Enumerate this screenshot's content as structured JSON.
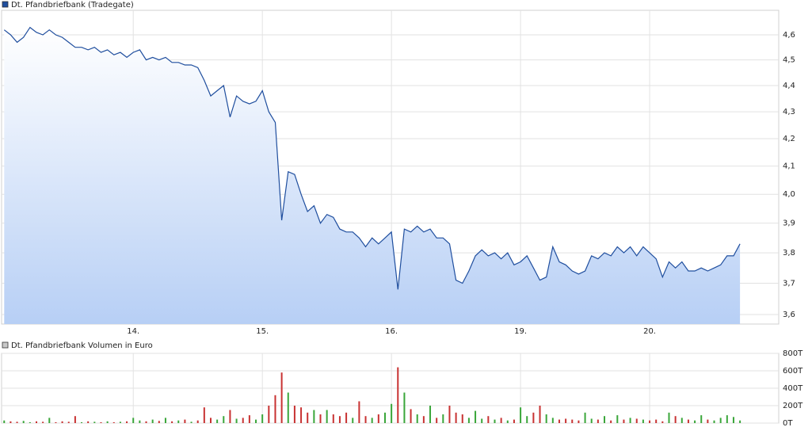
{
  "chart_data": [
    {
      "type": "area",
      "x": [
        0,
        0.05,
        0.1,
        0.15,
        0.2,
        0.25,
        0.3,
        0.35,
        0.4,
        0.45,
        0.5,
        0.55,
        0.6,
        0.65,
        0.7,
        0.75,
        0.8,
        0.85,
        0.9,
        0.95,
        1,
        1.05,
        1.1,
        1.15,
        1.2,
        1.25,
        1.3,
        1.35,
        1.4,
        1.45,
        1.5,
        1.55,
        1.6,
        1.65,
        1.7,
        1.75,
        1.8,
        1.85,
        1.9,
        1.95,
        2,
        2.05,
        2.1,
        2.15,
        2.2,
        2.25,
        2.3,
        2.35,
        2.4,
        2.45,
        2.5,
        2.55,
        2.6,
        2.65,
        2.7,
        2.75,
        2.8,
        2.85,
        2.9,
        2.95,
        3,
        3.05,
        3.1,
        3.15,
        3.2,
        3.25,
        3.3,
        3.35,
        3.4,
        3.45,
        3.5,
        3.55,
        3.6,
        3.65,
        3.7,
        3.75,
        3.8,
        3.85,
        3.9,
        3.95,
        4,
        4.05,
        4.1,
        4.15,
        4.2,
        4.25,
        4.3,
        4.35,
        4.4,
        4.45,
        4.5,
        4.55,
        4.6,
        4.65,
        4.7,
        4.75,
        4.8,
        4.85,
        4.9,
        4.95,
        5,
        5.05,
        5.1,
        5.15,
        5.2,
        5.25,
        5.3,
        5.35,
        5.4,
        5.45,
        5.5,
        5.55,
        5.6,
        5.65,
        5.7
      ],
      "series": [
        {
          "name": "Dt. Pfandbriefbank (Tradegate)",
          "color": "#1f4e9e",
          "values": [
            4.62,
            4.6,
            4.57,
            4.59,
            4.63,
            4.61,
            4.6,
            4.62,
            4.6,
            4.59,
            4.57,
            4.55,
            4.55,
            4.54,
            4.55,
            4.53,
            4.54,
            4.52,
            4.53,
            4.51,
            4.53,
            4.54,
            4.5,
            4.51,
            4.5,
            4.51,
            4.49,
            4.49,
            4.48,
            4.48,
            4.47,
            4.42,
            4.36,
            4.38,
            4.4,
            4.28,
            4.36,
            4.34,
            4.33,
            4.34,
            4.38,
            4.3,
            4.26,
            3.91,
            4.08,
            4.07,
            4.0,
            3.94,
            3.96,
            3.9,
            3.93,
            3.92,
            3.88,
            3.87,
            3.87,
            3.85,
            3.82,
            3.85,
            3.83,
            3.85,
            3.87,
            3.68,
            3.88,
            3.87,
            3.89,
            3.87,
            3.88,
            3.85,
            3.85,
            3.83,
            3.71,
            3.7,
            3.74,
            3.79,
            3.81,
            3.79,
            3.8,
            3.78,
            3.8,
            3.76,
            3.77,
            3.79,
            3.75,
            3.71,
            3.72,
            3.82,
            3.77,
            3.76,
            3.74,
            3.73,
            3.74,
            3.79,
            3.78,
            3.8,
            3.79,
            3.82,
            3.8,
            3.82,
            3.79,
            3.82,
            3.8,
            3.78,
            3.72,
            3.77,
            3.75,
            3.77,
            3.74,
            3.74,
            3.75,
            3.74,
            3.75,
            3.76,
            3.79,
            3.79,
            3.83
          ]
        }
      ],
      "xlim": [
        -0.02,
        6
      ],
      "xticks": [
        {
          "value": 1,
          "label": "14."
        },
        {
          "value": 2,
          "label": "15."
        },
        {
          "value": 3,
          "label": "16."
        },
        {
          "value": 4,
          "label": "19."
        },
        {
          "value": 5,
          "label": "20."
        }
      ],
      "ylim": [
        3.57,
        4.7
      ],
      "yticks": [
        {
          "value": 3.6,
          "label": "3,6"
        },
        {
          "value": 3.7,
          "label": "3,7"
        },
        {
          "value": 3.8,
          "label": "3,8"
        },
        {
          "value": 3.9,
          "label": "3,9"
        },
        {
          "value": 4.0,
          "label": "4,0"
        },
        {
          "value": 4.1,
          "label": "4,1"
        },
        {
          "value": 4.2,
          "label": "4,2"
        },
        {
          "value": 4.3,
          "label": "4,3"
        },
        {
          "value": 4.4,
          "label": "4,4"
        },
        {
          "value": 4.5,
          "label": "4,5"
        },
        {
          "value": 4.6,
          "label": "4,6"
        }
      ],
      "log_scale": true,
      "grid": true,
      "fill_color": "#b7cff5"
    },
    {
      "type": "bar",
      "series": [
        {
          "name": "Dt. Pfandbriefbank Volumen in Euro",
          "color": "#c8c8c8",
          "values": [
            30000,
            20000,
            15000,
            25000,
            10000,
            20000,
            15000,
            60000,
            10000,
            20000,
            15000,
            80000,
            10000,
            20000,
            15000,
            10000,
            20000,
            10000,
            15000,
            20000,
            60000,
            30000,
            20000,
            40000,
            25000,
            60000,
            20000,
            30000,
            40000,
            15000,
            30000,
            180000,
            60000,
            40000,
            80000,
            150000,
            50000,
            60000,
            90000,
            40000,
            100000,
            200000,
            320000,
            580000,
            350000,
            200000,
            180000,
            120000,
            150000,
            100000,
            150000,
            100000,
            80000,
            120000,
            60000,
            250000,
            80000,
            60000,
            100000,
            120000,
            220000,
            640000,
            350000,
            160000,
            100000,
            80000,
            200000,
            60000,
            100000,
            200000,
            120000,
            100000,
            60000,
            140000,
            50000,
            80000,
            40000,
            60000,
            30000,
            40000,
            180000,
            80000,
            120000,
            200000,
            100000,
            60000,
            40000,
            50000,
            40000,
            30000,
            120000,
            50000,
            40000,
            80000,
            30000,
            90000,
            40000,
            60000,
            50000,
            40000,
            30000,
            40000,
            20000,
            120000,
            80000,
            60000,
            40000,
            30000,
            90000,
            40000,
            30000,
            60000,
            90000,
            70000,
            30000
          ]
        }
      ],
      "up_color": "#3aa63a",
      "down_color": "#c83232",
      "ylim": [
        0,
        800000
      ],
      "yticks": [
        {
          "value": 0,
          "label": "0T"
        },
        {
          "value": 200000,
          "label": "200T"
        },
        {
          "value": 400000,
          "label": "400T"
        },
        {
          "value": 600000,
          "label": "600T"
        },
        {
          "value": 800000,
          "label": "800T"
        }
      ],
      "grid": true
    }
  ]
}
